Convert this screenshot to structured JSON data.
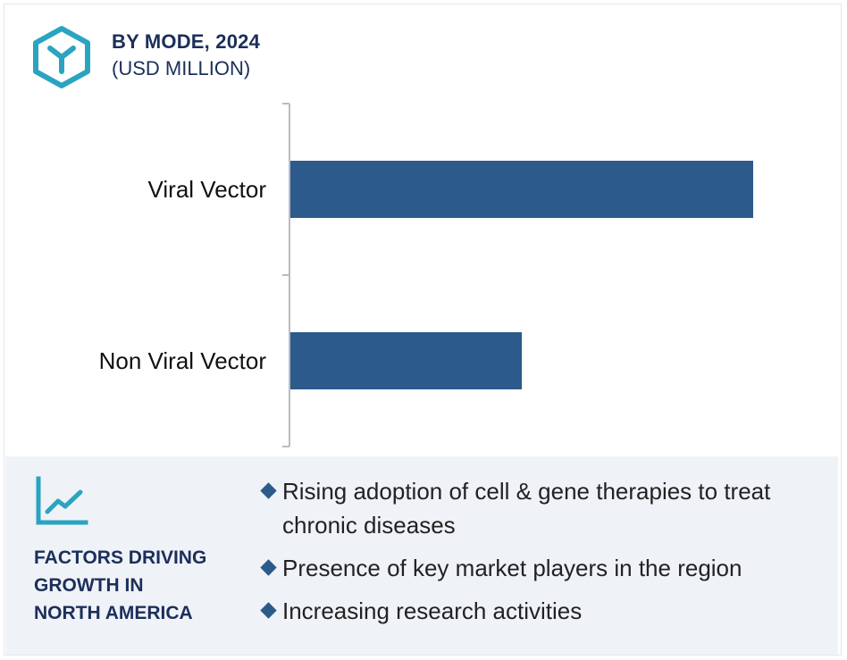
{
  "header": {
    "title": "BY MODE, 2024",
    "subtitle": "(USD MILLION)",
    "logo_icon": "cube-y-logo-icon"
  },
  "chart_data": {
    "type": "bar",
    "orientation": "horizontal",
    "title": "BY MODE, 2024",
    "subtitle": "(USD MILLION)",
    "categories": [
      "Viral Vector",
      "Non Viral Vector"
    ],
    "values": [
      100,
      50
    ],
    "value_scale": "relative",
    "xlabel": "",
    "ylabel": "",
    "grid": false,
    "bar_color": "#2c5a8a"
  },
  "factors": {
    "icon": "trend-line-chart-icon",
    "title_lines": [
      "FACTORS DRIVING",
      "GROWTH IN",
      "NORTH AMERICA"
    ],
    "bullets": [
      "Rising adoption of cell & gene therapies to treat chronic diseases",
      "Presence of key market players in the region",
      "Increasing research activities"
    ]
  },
  "colors": {
    "accent_teal": "#2aa4c0",
    "navy_text": "#1b2f5a",
    "bar": "#2c5a8a",
    "panel_bg": "#eff2f7"
  }
}
